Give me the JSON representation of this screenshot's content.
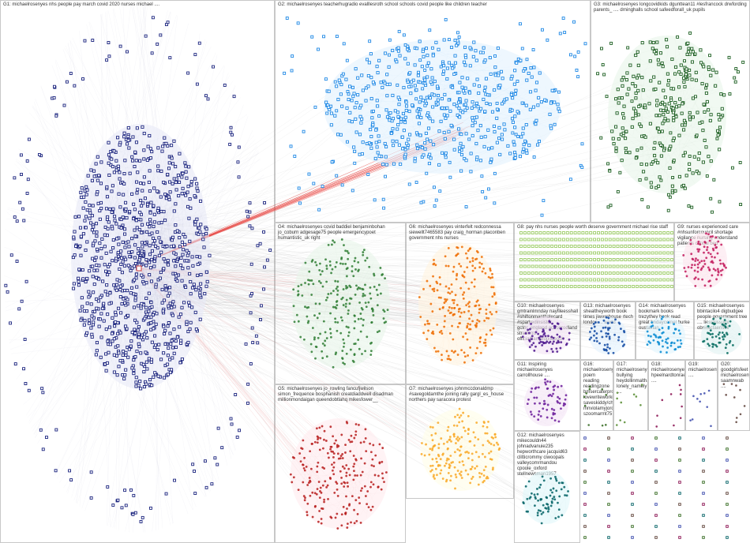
{
  "groups": [
    {
      "id": "G1",
      "label": "G1: michaelrosenyes nhs people pay march covid 2020 nurses michael ....",
      "color": "#1a237e"
    },
    {
      "id": "G2",
      "label": "G2: michaelrosenyes teacherhugradio evalllesroth school schools covid people like children teacher",
      "color": "#1e88e5"
    },
    {
      "id": "G3",
      "label": "G3: michaelrosenyes longcovidkids dgunttean11 #lesfrancock drwfording parents_ .... drninghalls school safeedforall_uk pupils",
      "color": "#1b5e20"
    },
    {
      "id": "G4",
      "label": "G4: michaelrosenyes covid baddiel benjaminbohan jo_coburn adgesage75 people emergencypoet humantistic_uk right",
      "color": "#2e7d32"
    },
    {
      "id": "G5",
      "label": "G5: michaelrosenyes jo_rowling fancufjwilson simon_frequence bosphanish creatdiaddwell disadman millionmondaigan queendobtlahq mikesfower__",
      "color": "#b71c1c"
    },
    {
      "id": "G6",
      "label": "G6: michaelrosenyes vinterfelt redconnessa siewellt7465583 pay craig_horman placonben government nhs nurses",
      "color": "#ef6c00"
    },
    {
      "id": "G7",
      "label": "G7: michaelrosenyes johnmccdonaldmp #savegoldamthe joining rally gargl_es_house northers pay saracora protest",
      "color": "#f9a825"
    },
    {
      "id": "G8",
      "label": "G8: pay nhs nurses people worth deserve government michael rise staff",
      "color": "#9ccc65"
    },
    {
      "id": "G9",
      "label": "G9: nurses experienced care #nhsunforcouncil shortage vigilance nursing understand patients critical bed",
      "color": "#c2185b"
    },
    {
      "id": "G10",
      "label": "G10: michaelrosenyes gmtrainlmnday nayfileesshall #shiftonmanthalecard #sparkedinsister gctor_england acrionrodland stratforrd officialbarnaldpilebook",
      "color": "#4a148c"
    },
    {
      "id": "G11",
      "label": "G11: Inspiring michaelrosenyes carrollhouse ....",
      "color": "#6a1b9a"
    },
    {
      "id": "G12",
      "label": "G12: michaelrosenyes mikecouldn44 johnadvanuie235 hepworthcare jacquid63 clitticrommy ciwoopals valleycomrmandou cpoole_oxford stellnewsman1957",
      "color": "#006064"
    },
    {
      "id": "G13",
      "label": "G13: michaelrosenyes shealtheyworth book times jiwarehouse rtech london ... world",
      "color": "#0d47a1"
    },
    {
      "id": "G14",
      "label": "G14: michaelrosenyes bookmark books trezythey book read great hndaycornel burke oustavian",
      "color": "#0288d1"
    },
    {
      "id": "G15",
      "label": "G15: michaelrosenyes bbintacilo4 digbudgee people government tree .... liesskissumi obr#lactaerisoil",
      "color": "#00695c"
    },
    {
      "id": "G16",
      "label": "G16: michaelrosenyes poem reading readingzone bmsercaterproe lovewriteworking saveskiddy/chaon mnviolamyjordan szoomarmt75",
      "color": "#33691e"
    },
    {
      "id": "G17",
      "label": "G17: michaelrosenyes bullying heydollinmaltham lonely_namely ....",
      "color": "#558b2f"
    },
    {
      "id": "G18",
      "label": "G18: michaelrosenyes hpeelnardtonrae ....",
      "color": "#880e4f"
    },
    {
      "id": "G19",
      "label": "G19: michaelrosenyes ....",
      "color": "#3949ab"
    },
    {
      "id": "G20",
      "label": "G20: goodgirlsfeet michaelrosenyes saamnwab ....",
      "color": "#5d4037"
    }
  ]
}
